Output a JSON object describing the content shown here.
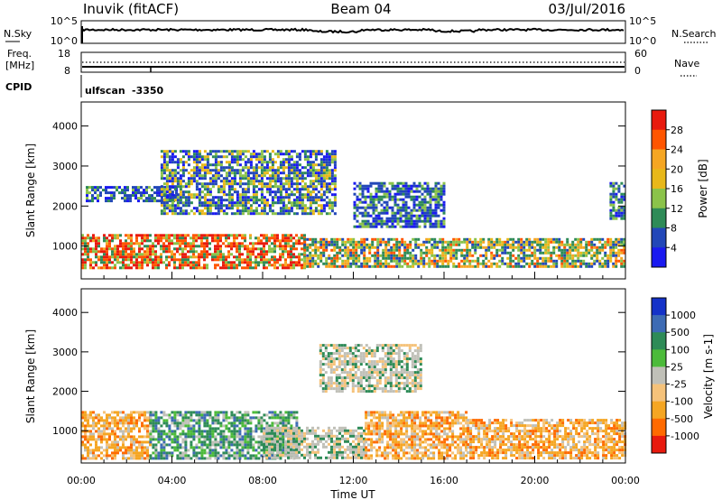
{
  "header": {
    "station": "Inuvik (fitACF)",
    "beam": "Beam 04",
    "date": "03/Jul/2016"
  },
  "nsky_panel": {
    "label": "N.Sky",
    "left_ticks": [
      "10^5",
      "10^0"
    ],
    "right_ticks": [
      "10^5",
      "10^0"
    ],
    "right_label": "N.Search"
  },
  "freq_panel": {
    "label_line1": "Freq.",
    "label_line2": "[MHz]",
    "left_ticks": [
      "18",
      "8"
    ],
    "right_ticks": [
      "60",
      "0"
    ],
    "right_label": "Nave"
  },
  "cpid": {
    "label": "CPID",
    "scan_name": "ulfscan",
    "scan_id": "-3350"
  },
  "x_axis": {
    "ticks": [
      "00:00",
      "04:00",
      "08:00",
      "12:00",
      "16:00",
      "20:00",
      "00:00"
    ],
    "label": "Time UT"
  },
  "chart_data": [
    {
      "type": "heatmap",
      "parameter": "Power",
      "ylabel": "Slant Range [km]",
      "ylim": [
        180,
        4600
      ],
      "yticks": [
        "1000",
        "2000",
        "3000",
        "4000"
      ],
      "xlim_hours": [
        0,
        24
      ],
      "colorbar": {
        "label": "Power [dB]",
        "ticks": [
          "28",
          "24",
          "20",
          "16",
          "12",
          "8",
          "4"
        ],
        "colors": [
          "#e81a0e",
          "#ff5500",
          "#f5a623",
          "#e8b81a",
          "#8bc34a",
          "#2e8b57",
          "#2247b8",
          "#1a1af0"
        ]
      },
      "echo_regions": [
        {
          "t0": 0.0,
          "t1": 9.8,
          "r0": 450,
          "r1": 1300,
          "level": "high"
        },
        {
          "t0": 9.8,
          "t1": 23.9,
          "r0": 500,
          "r1": 1200,
          "level": "medium"
        },
        {
          "t0": 0.2,
          "t1": 4.2,
          "r0": 2100,
          "r1": 2500,
          "level": "low"
        },
        {
          "t0": 3.5,
          "t1": 11.2,
          "r0": 1800,
          "r1": 3400,
          "level": "mixed"
        },
        {
          "t0": 12.0,
          "t1": 16.0,
          "r0": 1500,
          "r1": 2600,
          "level": "low"
        },
        {
          "t0": 23.3,
          "t1": 23.9,
          "r0": 1700,
          "r1": 2600,
          "level": "low"
        }
      ]
    },
    {
      "type": "heatmap",
      "parameter": "Velocity",
      "ylabel": "Slant Range [km]",
      "ylim": [
        180,
        4600
      ],
      "yticks": [
        "1000",
        "2000",
        "3000",
        "4000"
      ],
      "xlim_hours": [
        0,
        24
      ],
      "colorbar": {
        "label": "Velocity [m s-1]",
        "ticks": [
          "1000",
          "500",
          "100",
          "25",
          "-25",
          "-100",
          "-500",
          "-1000"
        ],
        "colors": [
          "#1432c8",
          "#3d6bb4",
          "#2e8b57",
          "#4cbb3a",
          "#c0c0b8",
          "#f5c27a",
          "#f5a623",
          "#ff6a00",
          "#e81a0e"
        ]
      },
      "echo_regions": [
        {
          "t0": 0.0,
          "t1": 3.0,
          "r0": 300,
          "r1": 1500,
          "level": "orange"
        },
        {
          "t0": 3.0,
          "t1": 9.5,
          "r0": 300,
          "r1": 1500,
          "level": "green"
        },
        {
          "t0": 8.0,
          "t1": 12.5,
          "r0": 300,
          "r1": 1100,
          "level": "grey"
        },
        {
          "t0": 12.5,
          "t1": 17.0,
          "r0": 300,
          "r1": 1500,
          "level": "orange"
        },
        {
          "t0": 17.0,
          "t1": 24.0,
          "r0": 300,
          "r1": 1300,
          "level": "orange"
        },
        {
          "t0": 10.5,
          "t1": 15.0,
          "r0": 2000,
          "r1": 3200,
          "level": "grey"
        }
      ]
    }
  ]
}
